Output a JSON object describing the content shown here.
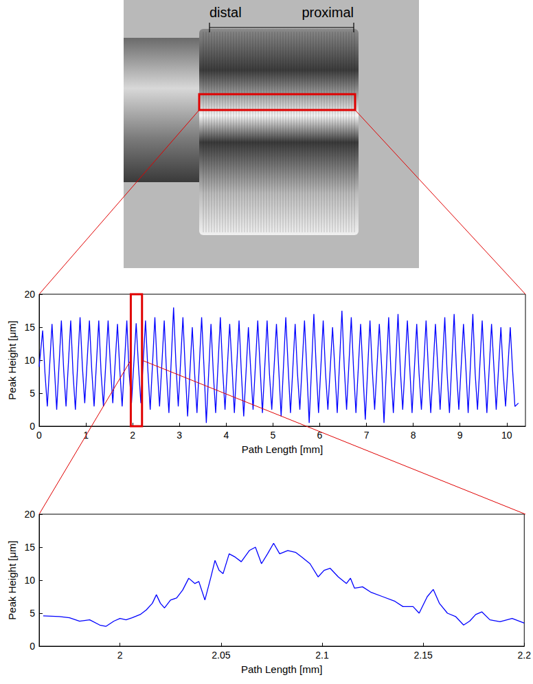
{
  "image": {
    "labels": [
      "distal",
      "proximal"
    ]
  },
  "chart_data": [
    {
      "type": "line",
      "x_label": "Path Length [mm]",
      "y_label": "Peak Height [μm]",
      "xlim": [
        0,
        10.4
      ],
      "xticks": [
        0,
        1,
        2,
        3,
        4,
        5,
        6,
        7,
        8,
        9,
        10
      ],
      "ylim": [
        0,
        20
      ],
      "yticks": [
        0,
        5,
        10,
        15,
        20
      ],
      "grid": false,
      "color": "#0000ff",
      "x": [
        0,
        0.075,
        0.125,
        0.175,
        0.275,
        0.325,
        0.375,
        0.475,
        0.525,
        0.575,
        0.675,
        0.725,
        0.775,
        0.875,
        0.925,
        0.975,
        1.075,
        1.125,
        1.175,
        1.275,
        1.325,
        1.375,
        1.475,
        1.525,
        1.575,
        1.675,
        1.725,
        1.775,
        1.875,
        1.925,
        1.975,
        2.075,
        2.125,
        2.175,
        2.275,
        2.325,
        2.375,
        2.475,
        2.525,
        2.575,
        2.675,
        2.725,
        2.775,
        2.875,
        2.925,
        2.975,
        3.075,
        3.125,
        3.175,
        3.275,
        3.325,
        3.375,
        3.475,
        3.525,
        3.575,
        3.675,
        3.725,
        3.775,
        3.875,
        3.925,
        3.975,
        4.075,
        4.125,
        4.175,
        4.275,
        4.325,
        4.375,
        4.475,
        4.525,
        4.575,
        4.675,
        4.725,
        4.775,
        4.875,
        4.925,
        4.975,
        5.075,
        5.125,
        5.175,
        5.275,
        5.325,
        5.375,
        5.475,
        5.525,
        5.575,
        5.675,
        5.725,
        5.775,
        5.875,
        5.925,
        5.975,
        6.075,
        6.125,
        6.175,
        6.275,
        6.325,
        6.375,
        6.475,
        6.525,
        6.575,
        6.675,
        6.725,
        6.775,
        6.875,
        6.925,
        6.975,
        7.075,
        7.125,
        7.175,
        7.275,
        7.325,
        7.375,
        7.475,
        7.525,
        7.575,
        7.675,
        7.725,
        7.775,
        7.875,
        7.925,
        7.975,
        8.075,
        8.125,
        8.175,
        8.275,
        8.325,
        8.375,
        8.475,
        8.525,
        8.575,
        8.675,
        8.725,
        8.775,
        8.875,
        8.925,
        8.975,
        9.075,
        9.125,
        9.175,
        9.275,
        9.325,
        9.375,
        9.475,
        9.525,
        9.575,
        9.675,
        9.725,
        9.775,
        9.875,
        9.925,
        9.975,
        10.075,
        10.125,
        10.175,
        10.25
      ],
      "values": [
        9,
        14.5,
        8,
        3,
        15.5,
        9,
        2.5,
        16,
        8.5,
        3,
        16,
        8,
        2.5,
        16.5,
        9,
        3.5,
        16,
        8.5,
        3,
        16,
        8,
        3,
        16,
        9,
        3.5,
        15.5,
        8.5,
        3,
        16,
        8,
        3.5,
        15.6,
        9,
        3.5,
        16,
        8.5,
        2.5,
        16.5,
        9,
        3,
        16,
        8,
        2,
        18,
        9.5,
        3,
        16.5,
        8.5,
        1.5,
        15,
        8,
        2,
        16.5,
        9,
        0.5,
        15.5,
        8,
        2,
        16.5,
        8.5,
        2.5,
        15.5,
        9,
        2,
        16,
        8,
        1.5,
        15,
        8.5,
        2.5,
        16,
        9,
        2,
        16,
        8,
        2.5,
        15.5,
        8.5,
        1.5,
        16.5,
        9,
        2,
        15.5,
        8,
        2.5,
        16,
        8.5,
        0.5,
        17,
        9,
        2,
        16,
        8,
        2.5,
        15,
        8.5,
        2,
        17.5,
        9,
        2.5,
        16.5,
        8.5,
        2,
        15.5,
        8,
        1,
        16,
        8.5,
        2.5,
        15.5,
        9,
        0.5,
        16.5,
        8,
        2,
        17,
        8.5,
        2.5,
        16,
        9,
        2,
        15.5,
        8,
        2.5,
        16,
        8.5,
        2,
        15.5,
        9,
        2.5,
        16.5,
        8,
        2,
        17,
        8.5,
        2.5,
        15.5,
        9,
        2,
        17,
        8,
        2.5,
        16,
        8.5,
        2,
        15.5,
        9,
        2.5,
        15,
        8,
        3,
        15,
        8.5,
        3,
        3.5
      ]
    },
    {
      "type": "line",
      "x_label": "Path Length [mm]",
      "y_label": "Peak Height [μm]",
      "xlim": [
        1.96,
        2.2
      ],
      "xticks": [
        2,
        2.05,
        2.1,
        2.15,
        2.2
      ],
      "ylim": [
        0,
        20
      ],
      "yticks": [
        0,
        5,
        10,
        15,
        20
      ],
      "grid": false,
      "color": "#0000ff",
      "x": [
        1.962,
        1.97,
        1.975,
        1.98,
        1.985,
        1.99,
        1.993,
        1.997,
        2.0,
        2.003,
        2.006,
        2.01,
        2.013,
        2.016,
        2.018,
        2.02,
        2.022,
        2.025,
        2.028,
        2.031,
        2.034,
        2.037,
        2.039,
        2.042,
        2.045,
        2.047,
        2.049,
        2.051,
        2.054,
        2.057,
        2.06,
        2.064,
        2.067,
        2.07,
        2.073,
        2.076,
        2.079,
        2.083,
        2.087,
        2.09,
        2.094,
        2.098,
        2.101,
        2.104,
        2.108,
        2.112,
        2.114,
        2.116,
        2.12,
        2.124,
        2.13,
        2.136,
        2.14,
        2.145,
        2.148,
        2.152,
        2.155,
        2.158,
        2.162,
        2.166,
        2.17,
        2.173,
        2.176,
        2.179,
        2.183,
        2.188,
        2.194,
        2.2
      ],
      "values": [
        4.6,
        4.5,
        4.3,
        3.8,
        4.0,
        3.2,
        3.0,
        3.8,
        4.2,
        4.0,
        4.3,
        4.8,
        5.5,
        6.5,
        7.8,
        6.5,
        5.8,
        7.0,
        7.3,
        8.5,
        10.3,
        9.5,
        9.8,
        7.0,
        10.5,
        13.0,
        11.5,
        11.0,
        14.0,
        13.5,
        12.8,
        14.5,
        15.0,
        12.5,
        14.0,
        15.6,
        14.0,
        14.5,
        14.2,
        13.5,
        12.5,
        10.5,
        11.5,
        11.8,
        10.5,
        9.5,
        10.3,
        8.8,
        9.0,
        8.2,
        7.5,
        6.8,
        6.0,
        6.0,
        5.0,
        7.5,
        8.6,
        6.5,
        5.0,
        4.5,
        3.2,
        3.8,
        4.8,
        5.2,
        4.0,
        3.7,
        4.2,
        3.5
      ]
    }
  ]
}
